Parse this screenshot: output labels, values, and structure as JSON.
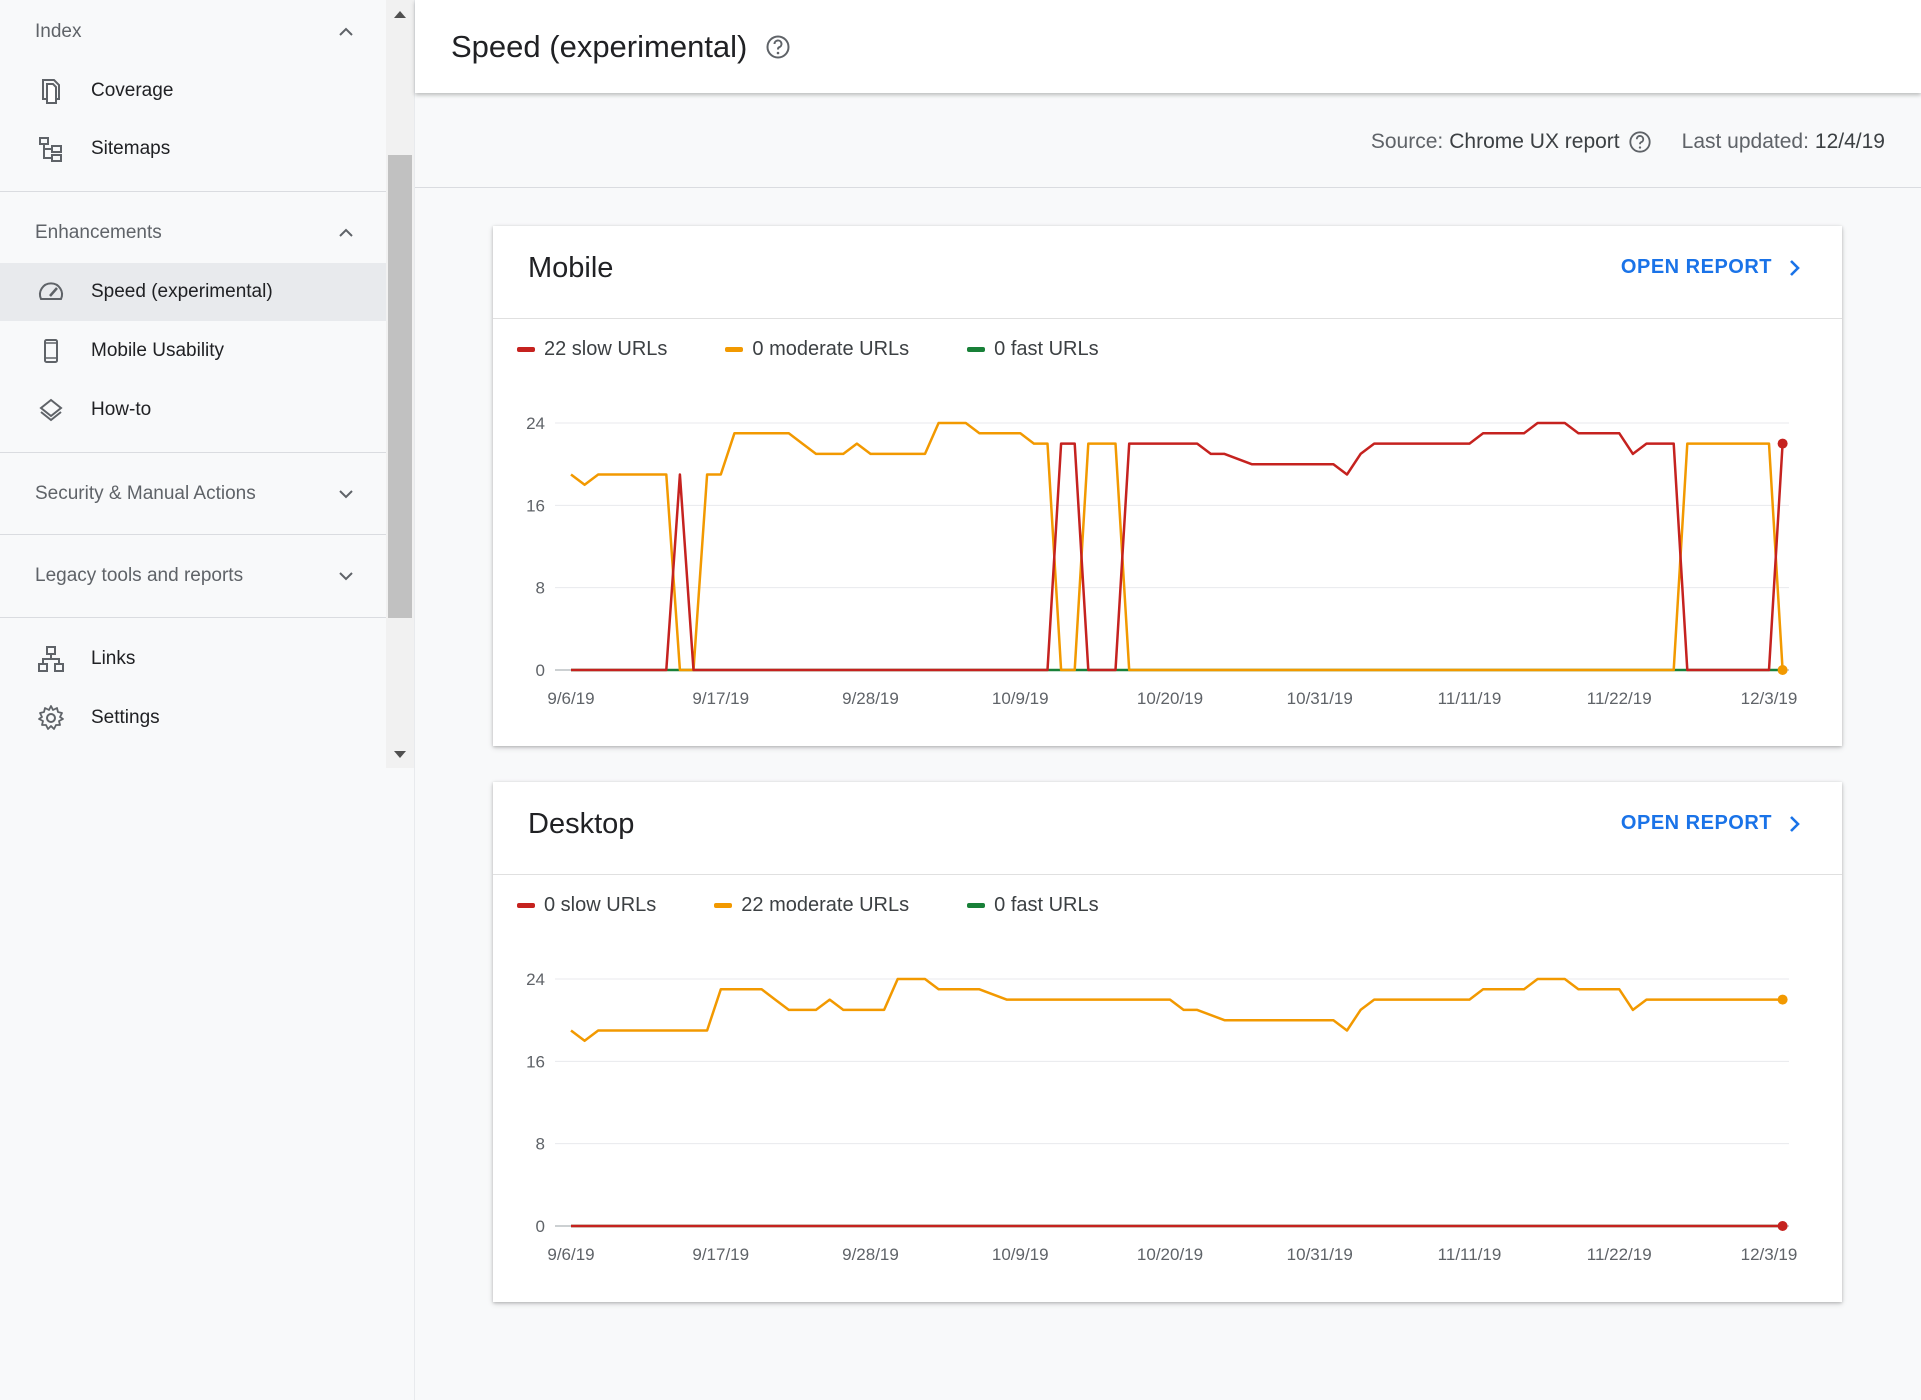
{
  "sidebar": {
    "index": {
      "label": "Index",
      "items": [
        {
          "label": "Coverage",
          "icon": "coverage-icon"
        },
        {
          "label": "Sitemaps",
          "icon": "sitemaps-icon"
        }
      ]
    },
    "enhancements": {
      "label": "Enhancements",
      "items": [
        {
          "label": "Speed (experimental)",
          "icon": "speed-gauge-icon",
          "active": true
        },
        {
          "label": "Mobile Usability",
          "icon": "phone-icon"
        },
        {
          "label": "How-to",
          "icon": "layers-icon"
        }
      ]
    },
    "security": {
      "label": "Security & Manual Actions"
    },
    "legacy": {
      "label": "Legacy tools and reports"
    },
    "bottom_items": [
      {
        "label": "Links",
        "icon": "links-icon"
      },
      {
        "label": "Settings",
        "icon": "gear-icon"
      }
    ]
  },
  "header": {
    "title": "Speed (experimental)"
  },
  "meta": {
    "source_label": "Source:",
    "source_value": "Chrome UX report",
    "updated_label": "Last updated:",
    "updated_value": "12/4/19"
  },
  "colors": {
    "slow": "#c5221f",
    "moderate": "#f29900",
    "fast": "#188038",
    "link": "#1a73e8"
  },
  "mobile": {
    "title": "Mobile",
    "open_report": "OPEN REPORT",
    "legend": {
      "slow": "22 slow URLs",
      "moderate": "0 moderate URLs",
      "fast": "0 fast URLs"
    }
  },
  "desktop": {
    "title": "Desktop",
    "open_report": "OPEN REPORT",
    "legend": {
      "slow": "0 slow URLs",
      "moderate": "22 moderate URLs",
      "fast": "0 fast URLs"
    }
  },
  "chart_data": [
    {
      "type": "line",
      "title": "Mobile",
      "x_labels": [
        "9/6/19",
        "9/17/19",
        "9/28/19",
        "10/9/19",
        "10/20/19",
        "10/31/19",
        "11/11/19",
        "11/22/19",
        "12/3/19"
      ],
      "x_label_days": [
        0,
        11,
        22,
        33,
        44,
        55,
        66,
        77,
        88
      ],
      "x_days": [
        0,
        1,
        2,
        7,
        8,
        9,
        10,
        11,
        12,
        13,
        15,
        16,
        17,
        18,
        19,
        20,
        21,
        22,
        23,
        24,
        25,
        26,
        27,
        28,
        29,
        30,
        31,
        32,
        33,
        34,
        35,
        36,
        37,
        38,
        39,
        40,
        41,
        42,
        44,
        45,
        46,
        47,
        48,
        50,
        52,
        56,
        57,
        58,
        59,
        60,
        61,
        66,
        67,
        68,
        70,
        71,
        72,
        73,
        74,
        75,
        76,
        77,
        78,
        79,
        80,
        81,
        82,
        83,
        84,
        85,
        86,
        87,
        88,
        89
      ],
      "ylim": [
        0,
        24
      ],
      "y_ticks": [
        0,
        8,
        16,
        24
      ],
      "series": [
        {
          "name": "slow",
          "values": [
            0,
            0,
            0,
            0,
            19,
            0,
            0,
            0,
            0,
            0,
            0,
            0,
            0,
            0,
            0,
            0,
            0,
            0,
            0,
            0,
            0,
            0,
            0,
            0,
            0,
            0,
            0,
            0,
            0,
            0,
            0,
            22,
            22,
            0,
            0,
            0,
            22,
            22,
            22,
            22,
            22,
            21,
            21,
            20,
            20,
            20,
            19,
            21,
            22,
            22,
            22,
            22,
            23,
            23,
            23,
            24,
            24,
            24,
            23,
            23,
            23,
            23,
            21,
            22,
            22,
            22,
            0,
            0,
            0,
            0,
            0,
            0,
            0,
            22
          ]
        },
        {
          "name": "moderate",
          "values": [
            19,
            18,
            19,
            19,
            0,
            0,
            19,
            19,
            23,
            23,
            23,
            23,
            22,
            21,
            21,
            21,
            22,
            21,
            21,
            21,
            21,
            21,
            24,
            24,
            24,
            23,
            23,
            23,
            23,
            22,
            22,
            0,
            0,
            22,
            22,
            22,
            0,
            0,
            0,
            0,
            0,
            0,
            0,
            0,
            0,
            0,
            0,
            0,
            0,
            0,
            0,
            0,
            0,
            0,
            0,
            0,
            0,
            0,
            0,
            0,
            0,
            0,
            0,
            0,
            0,
            0,
            22,
            22,
            22,
            22,
            22,
            22,
            22,
            0
          ]
        },
        {
          "name": "fast",
          "values": [
            0,
            0,
            0,
            0,
            0,
            0,
            0,
            0,
            0,
            0,
            0,
            0,
            0,
            0,
            0,
            0,
            0,
            0,
            0,
            0,
            0,
            0,
            0,
            0,
            0,
            0,
            0,
            0,
            0,
            0,
            0,
            0,
            0,
            0,
            0,
            0,
            0,
            0,
            0,
            0,
            0,
            0,
            0,
            0,
            0,
            0,
            0,
            0,
            0,
            0,
            0,
            0,
            0,
            0,
            0,
            0,
            0,
            0,
            0,
            0,
            0,
            0,
            0,
            0,
            0,
            0,
            0,
            0,
            0,
            0,
            0,
            0,
            0,
            0
          ]
        }
      ]
    },
    {
      "type": "line",
      "title": "Desktop",
      "x_labels": [
        "9/6/19",
        "9/17/19",
        "9/28/19",
        "10/9/19",
        "10/20/19",
        "10/31/19",
        "11/11/19",
        "11/22/19",
        "12/3/19"
      ],
      "x_label_days": [
        0,
        11,
        22,
        33,
        44,
        55,
        66,
        77,
        88
      ],
      "x_days": [
        0,
        1,
        2,
        10,
        11,
        12,
        13,
        14,
        15,
        16,
        17,
        18,
        19,
        20,
        21,
        22,
        23,
        24,
        25,
        26,
        27,
        28,
        29,
        30,
        32,
        34,
        36,
        38,
        40,
        41,
        42,
        44,
        45,
        46,
        48,
        50,
        52,
        54,
        56,
        57,
        58,
        59,
        60,
        62,
        64,
        66,
        67,
        68,
        70,
        71,
        72,
        73,
        74,
        75,
        76,
        77,
        78,
        79,
        80,
        82,
        84,
        86,
        88,
        89
      ],
      "ylim": [
        0,
        24
      ],
      "y_ticks": [
        0,
        8,
        16,
        24
      ],
      "series": [
        {
          "name": "moderate",
          "values": [
            19,
            18,
            19,
            19,
            23,
            23,
            23,
            23,
            22,
            21,
            21,
            21,
            22,
            21,
            21,
            21,
            21,
            24,
            24,
            24,
            23,
            23,
            23,
            23,
            22,
            22,
            22,
            22,
            22,
            22,
            22,
            22,
            21,
            21,
            20,
            20,
            20,
            20,
            20,
            19,
            21,
            22,
            22,
            22,
            22,
            22,
            23,
            23,
            23,
            24,
            24,
            24,
            23,
            23,
            23,
            23,
            21,
            22,
            22,
            22,
            22,
            22,
            22,
            22
          ]
        },
        {
          "name": "slow",
          "values": [
            0,
            0,
            0,
            0,
            0,
            0,
            0,
            0,
            0,
            0,
            0,
            0,
            0,
            0,
            0,
            0,
            0,
            0,
            0,
            0,
            0,
            0,
            0,
            0,
            0,
            0,
            0,
            0,
            0,
            0,
            0,
            0,
            0,
            0,
            0,
            0,
            0,
            0,
            0,
            0,
            0,
            0,
            0,
            0,
            0,
            0,
            0,
            0,
            0,
            0,
            0,
            0,
            0,
            0,
            0,
            0,
            0,
            0,
            0,
            0,
            0,
            0,
            0,
            0
          ]
        },
        {
          "name": "fast",
          "values": [
            0,
            0,
            0,
            0,
            0,
            0,
            0,
            0,
            0,
            0,
            0,
            0,
            0,
            0,
            0,
            0,
            0,
            0,
            0,
            0,
            0,
            0,
            0,
            0,
            0,
            0,
            0,
            0,
            0,
            0,
            0,
            0,
            0,
            0,
            0,
            0,
            0,
            0,
            0,
            0,
            0,
            0,
            0,
            0,
            0,
            0,
            0,
            0,
            0,
            0,
            0,
            0,
            0,
            0,
            0,
            0,
            0,
            0,
            0,
            0,
            0,
            0,
            0,
            0
          ]
        }
      ]
    }
  ]
}
